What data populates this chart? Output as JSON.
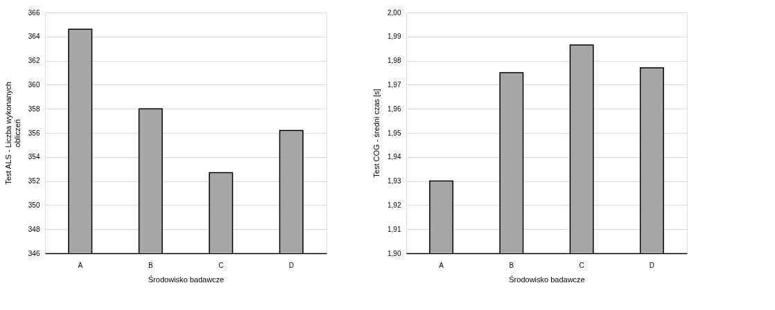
{
  "chart_data": [
    {
      "type": "bar",
      "xlabel": "Środowisko badawcze",
      "ylabel": "Test ALS - Liczba wykonanych obliczeń",
      "categories": [
        "A",
        "B",
        "C",
        "D"
      ],
      "series": [
        {
          "color": "#a6a6a6",
          "values": [
            364.6,
            358.0,
            352.7,
            356.2
          ]
        }
      ],
      "ylim": [
        346,
        366
      ],
      "yticks": [
        346,
        348,
        350,
        352,
        354,
        356,
        358,
        360,
        362,
        364,
        366
      ],
      "grid": "y",
      "legend": false
    },
    {
      "type": "bar",
      "xlabel": "Środowisko badawcze",
      "ylabel": "Test COG - średni czas [s]",
      "categories": [
        "A",
        "B",
        "C",
        "D"
      ],
      "series": [
        {
          "color": "#a6a6a6",
          "values": [
            1.93,
            1.975,
            1.9865,
            1.977
          ]
        }
      ],
      "ylim": [
        1.9,
        2.0
      ],
      "yticks": [
        {
          "value": 1.9,
          "label": "1,90"
        },
        {
          "value": 1.91,
          "label": "1,91"
        },
        {
          "value": 1.92,
          "label": "1,92"
        },
        {
          "value": 1.93,
          "label": "1,93"
        },
        {
          "value": 1.94,
          "label": "1,94"
        },
        {
          "value": 1.95,
          "label": "1,95"
        },
        {
          "value": 1.96,
          "label": "1,96"
        },
        {
          "value": 1.97,
          "label": "1,97"
        },
        {
          "value": 1.98,
          "label": "1,98"
        },
        {
          "value": 1.99,
          "label": "1,99"
        },
        {
          "value": 2.0,
          "label": "2,00"
        }
      ],
      "grid": "y",
      "legend": false
    }
  ]
}
